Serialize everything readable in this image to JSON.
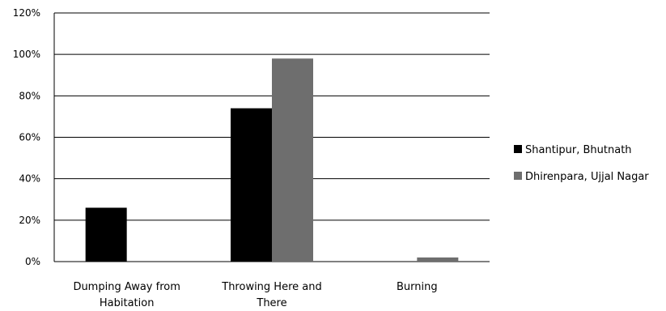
{
  "chart_data": {
    "type": "bar",
    "categories": [
      [
        "Dumping Away from",
        "Habitation"
      ],
      [
        "Throwing Here and",
        "There"
      ],
      [
        "Burning"
      ]
    ],
    "series": [
      {
        "name": "Shantipur, Bhutnath",
        "values": [
          26,
          74,
          0
        ],
        "color": "#000000"
      },
      {
        "name": "Dhirenpara, Ujjal Nagar",
        "values": [
          0,
          98,
          2
        ],
        "color": "#6e6e6e"
      }
    ],
    "ylim": [
      0,
      120
    ],
    "yticks": [
      "0%",
      "20%",
      "40%",
      "60%",
      "80%",
      "100%",
      "120%"
    ],
    "grid": true,
    "legend": "right"
  }
}
